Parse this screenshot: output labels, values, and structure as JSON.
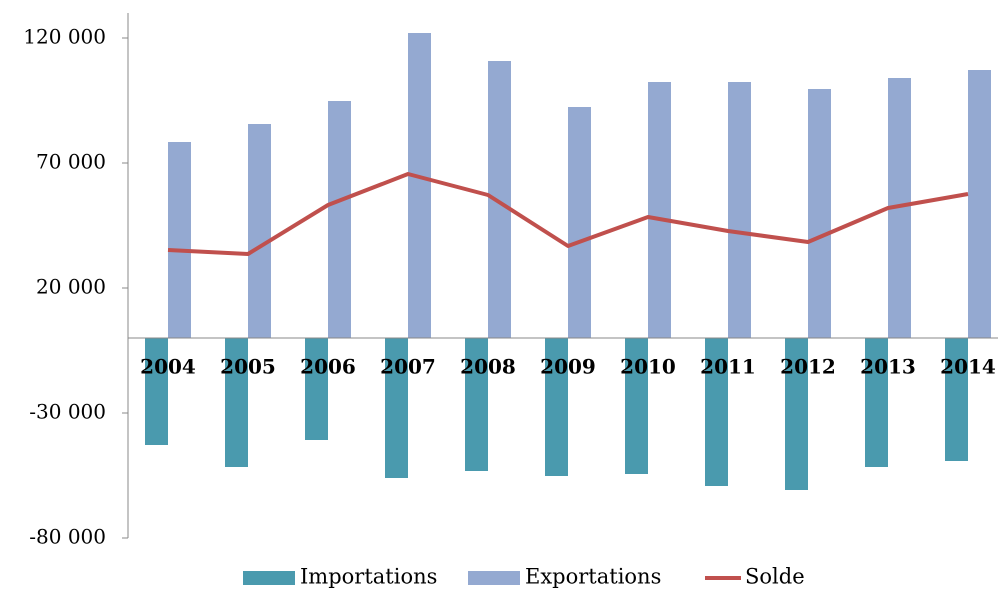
{
  "chart_data": {
    "type": "bar",
    "categories": [
      "2004",
      "2005",
      "2006",
      "2007",
      "2008",
      "2009",
      "2010",
      "2011",
      "2012",
      "2013",
      "2014"
    ],
    "series": [
      {
        "name": "Importations",
        "type": "bar",
        "color": "#4a9aae",
        "values": [
          -42800,
          -51600,
          -40800,
          -56000,
          -53200,
          -55200,
          -54400,
          -59200,
          -60800,
          -51600,
          -49200
        ]
      },
      {
        "name": "Exportations",
        "type": "bar",
        "color": "#94a9d1",
        "values": [
          78400,
          85600,
          94800,
          122000,
          110800,
          92400,
          102400,
          102400,
          99600,
          104000,
          107200
        ]
      },
      {
        "name": "Solde",
        "type": "line",
        "color": "#c0504d",
        "values": [
          35200,
          33600,
          53200,
          65600,
          57200,
          36800,
          48400,
          42800,
          38400,
          52000,
          57600
        ]
      }
    ],
    "ylim": [
      -80000,
      130000
    ],
    "yticks": [
      {
        "value": -80000,
        "label": "-80 000"
      },
      {
        "value": -30000,
        "label": "-30 000"
      },
      {
        "value": 20000,
        "label": "20 000"
      },
      {
        "value": 70000,
        "label": "70 000"
      },
      {
        "value": 120000,
        "label": "120 000"
      }
    ],
    "grid": false,
    "legend": "bottom"
  }
}
